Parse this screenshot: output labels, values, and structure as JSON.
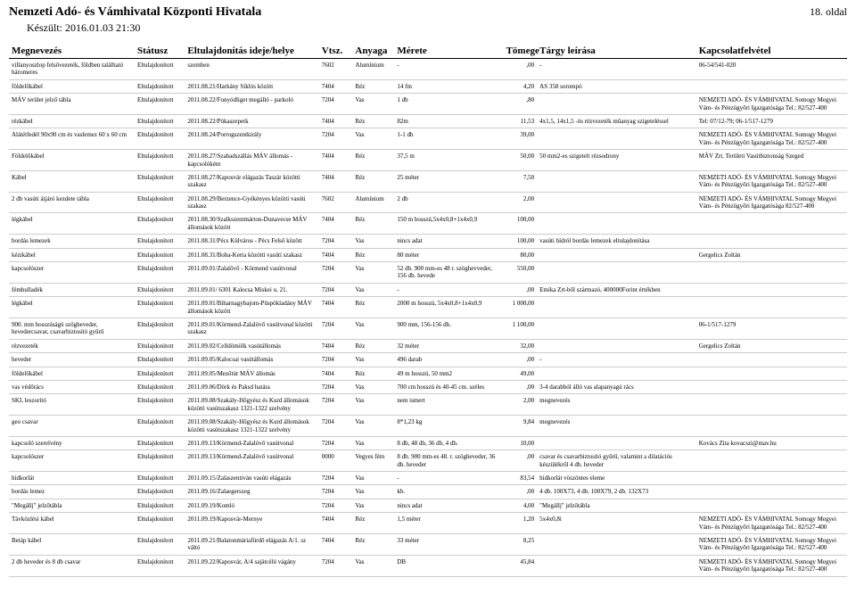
{
  "header": {
    "title": "Nemzeti Adó- és Vámhivatal Központi Hivatala",
    "page_label": "18. oldal",
    "date_line": "Készült:  2016.01.03 21:30"
  },
  "columns": {
    "name": "Megnevezés",
    "status": "Státusz",
    "time": "Eltulajdonítás ideje/helye",
    "vtsz": "Vtsz.",
    "material": "Anyaga",
    "size": "Mérete",
    "weight": "Tömege",
    "desc": "Tárgy leírása",
    "contact": "Kapcsolatfelvétel"
  },
  "rows": [
    {
      "name": "villanyoszlop felsővezeték, földben található háromeres",
      "status": "Eltulajdonított",
      "time": "szemben",
      "vtsz": "7602",
      "material": "Alumínium",
      "size": "-",
      "weight": ",00",
      "desc": "-",
      "contact": "06-54/541-020"
    },
    {
      "name": "földelőkábel",
      "status": "Eltulajdonított",
      "time": "2011.08.21/Harkány Siklós között",
      "vtsz": "7404",
      "material": "Réz",
      "size": "14 fm",
      "weight": "4,20",
      "desc": "AS 358 sorompó",
      "contact": ""
    },
    {
      "name": "MÁV terület jelző tábla",
      "status": "Eltulajdonított",
      "time": "2011.08.22/Fonyódliget megálló - parkoló",
      "vtsz": "7204",
      "material": "Vas",
      "size": "1 db",
      "weight": ",80",
      "desc": "",
      "contact": "NEMZETI ADÓ- ÉS VÁMHIVATAL Somogy Megyei Vám- és Pénzügyőri Igazgatósága Tel.: 82/527-400"
    },
    {
      "name": "rézkábel",
      "status": "Eltulajdonított",
      "time": "2011.08.22/Pókaszepetk",
      "vtsz": "7404",
      "material": "Réz",
      "size": "82m",
      "weight": "11,53",
      "desc": "4x1,5, 14x1,5 -ös rézvezeték műanyag szigeteléssel",
      "contact": "Tel: 07/12-79; 06-1/517-1279"
    },
    {
      "name": "Alátétfedél 90x90 cm és vaslemez 60 x 60 cm",
      "status": "Eltulajdonított",
      "time": "2011.08.24/Porrogszentkirály",
      "vtsz": "7204",
      "material": "Vas",
      "size": "1-1 db",
      "weight": "39,00",
      "desc": "",
      "contact": "NEMZETI ADÓ- ÉS VÁMHIVATAL Somogy Megyei Vám- és Pénzügyőri Igazgatósága Tel.: 82/527-400"
    },
    {
      "name": "Földelőkábel",
      "status": "Eltulajdonított",
      "time": "2011.08.27/Szabadszállás MÁV állomás - kapcsolóként",
      "vtsz": "7404",
      "material": "Réz",
      "size": "37,5 m",
      "weight": "50,00",
      "desc": "50 mm2-es szigetelt rézsodrony",
      "contact": "MÁV Zrt. Területi Vasútbiztonság Szeged"
    },
    {
      "name": "Kábel",
      "status": "Eltulajdonított",
      "time": "2011.08.27/Kaposvár elágazás Taszár közötti szakasz",
      "vtsz": "7404",
      "material": "Réz",
      "size": "25 méter",
      "weight": "7,50",
      "desc": "",
      "contact": "NEMZETI ADÓ- ÉS VÁMHIVATAL Somogy Megyei Vám- és Pénzügyőri Igazgatósága Tel.: 82/527-400"
    },
    {
      "name": "2 db vasúti átjáró kezdete tábla",
      "status": "Eltulajdonított",
      "time": "2011.08.29/Berzence-Gyékényes közötti vasúti szakasz",
      "vtsz": "7602",
      "material": "Alumínium",
      "size": "2 db",
      "weight": "2,00",
      "desc": "",
      "contact": "NEMZETI ADÓ- ÉS VÁMHIVATAL Somogy Megyei Vám- és Pénzügyőri Igazgatósága 82/527-400"
    },
    {
      "name": "légkábel",
      "status": "Eltulajdonított",
      "time": "2011.08.30/Szalkszentmárton-Dunavecse MÁV állomások között",
      "vtsz": "7404",
      "material": "Réz",
      "size": "150 m hosszú,5x4x0,8+1x4x0,9",
      "weight": "100,00",
      "desc": "",
      "contact": ""
    },
    {
      "name": "bordás lemezek",
      "status": "Eltulajdonított",
      "time": "2011.08.31/Pécs Külváros - Pécs Felső között",
      "vtsz": "7204",
      "material": "Vas",
      "size": "nincs adat",
      "weight": "100,00",
      "desc": "vasúti hídról bordás lemezek eltulajdonítása",
      "contact": ""
    },
    {
      "name": "kézikábel",
      "status": "Eltulajdonított",
      "time": "2011.08.31/Boba-Kerta közötti vasúti szakasz",
      "vtsz": "7404",
      "material": "Réz",
      "size": "80 méter",
      "weight": "80,00",
      "desc": "",
      "contact": "Gergelics Zoltán"
    },
    {
      "name": "kapcsolószer",
      "status": "Eltulajdonított",
      "time": "2011.09.01/Zalalövő - Körmend vasútvonal",
      "vtsz": "7204",
      "material": "Vas",
      "size": "52 db. 900 mm-es 48 r. szöghevveder, 156 db. hevede",
      "weight": "550,00",
      "desc": "",
      "contact": ""
    },
    {
      "name": "fémhulladék",
      "status": "Eltulajdonított",
      "time": "2011.09.01/ 6301 Kalocsa Miskei u. 21.",
      "vtsz": "7204",
      "material": "Vas",
      "size": "-",
      "weight": ",00",
      "desc": "Emika Zrt-ből származó, 400000Forint értékben",
      "contact": ""
    },
    {
      "name": "légkábel",
      "status": "Eltulajdonított",
      "time": "2011.09.01/Biharnagybajom-Püspökladány MÁV állomások között",
      "vtsz": "7404",
      "material": "Réz",
      "size": "2000 m hosszú, 5x4x0,8+1x4x0,9",
      "weight": "1 000,00",
      "desc": "",
      "contact": ""
    },
    {
      "name": "900. mm hosszúságú szögheveder, hevedercsavar, csavarbiztosító gyűrű",
      "status": "Eltulajdonított",
      "time": "2011.09.01/Körmend-Zalalövő vasútvonal közötti szakasz",
      "vtsz": "7204",
      "material": "Vas",
      "size": "900 mm, 156-156 db.",
      "weight": "1 100,00",
      "desc": "",
      "contact": "06-1/517-1279"
    },
    {
      "name": "rézvezeték",
      "status": "Eltulajdonított",
      "time": "2011.09.02/Celldömölk vasútállomás",
      "vtsz": "7404",
      "material": "Réz",
      "size": "32 méter",
      "weight": "32,00",
      "desc": "",
      "contact": "Gergelics Zoltán"
    },
    {
      "name": "heveder",
      "status": "Eltulajdonított",
      "time": "2011.09.05/Kalocsai vasútállomás",
      "vtsz": "7204",
      "material": "Vas",
      "size": "496 darab",
      "weight": ",00",
      "desc": "-",
      "contact": ""
    },
    {
      "name": "földelőkábel",
      "status": "Eltulajdonított",
      "time": "2011.09.05/Mezőtúr MÁV állomás",
      "vtsz": "7404",
      "material": "Réz",
      "size": "49 m hosszú, 50 mm2",
      "weight": "49,00",
      "desc": "",
      "contact": ""
    },
    {
      "name": "vas védőrács",
      "status": "Eltulajdonított",
      "time": "2011.09.06/Dörk és Paksd határa",
      "vtsz": "7204",
      "material": "Vas",
      "size": "700 cm hosszú és 40-45 cm. széles",
      "weight": ",00",
      "desc": "3-4 darabból álló vas alapanyagú rács",
      "contact": ""
    },
    {
      "name": "SKL leszorító",
      "status": "Eltulajdonított",
      "time": "2011.09.08/Szakály-Hőgyész és Kurd állomások közötti vasútszakasz 1321-1322 szelvény",
      "vtsz": "7204",
      "material": "Vas",
      "size": "nem ismert",
      "weight": "2,00",
      "desc": "megnevezés",
      "contact": ""
    },
    {
      "name": "geo csavar",
      "status": "Eltulajdonított",
      "time": "2011.09.08/Szakály-Hőgyész és Kurd állomások közötti vasútszakasz 1321-1322 szelvény",
      "vtsz": "7204",
      "material": "Vas",
      "size": "8*1,23 kg",
      "weight": "9,84",
      "desc": "megnevezés",
      "contact": ""
    },
    {
      "name": "kapcsoló szerelvény",
      "status": "Eltulajdonított",
      "time": "2011.09.13/Körmend-Zalalövő vasútvonal",
      "vtsz": "7204",
      "material": "Vas",
      "size": "8 db, 48 db, 36 db, 4 db.",
      "weight": "10,00",
      "desc": "",
      "contact": "Kovács Zita kovacszi@mav.hu"
    },
    {
      "name": "kapcsolószer",
      "status": "Eltulajdonított",
      "time": "2011.09.13/Körmend-Zalalövő vasútvonal",
      "vtsz": "0000",
      "material": "Vegyes fém",
      "size": "8 db. 900 mm-es 48. r. szögheveder, 36 db. heveder",
      "weight": ",00",
      "desc": "csavar és csavarbiztosító gyűrű, valamint a dilatációs készülékről 4 db. heveder",
      "contact": ""
    },
    {
      "name": "hídkorlát",
      "status": "Eltulajdonított",
      "time": "2011.09.15/Zalaszentiván vasúti elágazás",
      "vtsz": "7204",
      "material": "Vas",
      "size": "-",
      "weight": "83,54",
      "desc": "hídkorlát vöszöntes eleme",
      "contact": ""
    },
    {
      "name": "bordás lemez",
      "status": "Eltulajdonított",
      "time": "2011.09.16/Zalaegerszeg",
      "vtsz": "7204",
      "material": "Vas",
      "size": "kb.",
      "weight": ",00",
      "desc": "4 db. 100X73, 4 db. 100X79, 2 db. 132X73",
      "contact": ""
    },
    {
      "name": "\"Megállj\" jelzőtábla",
      "status": "Eltulajdonított",
      "time": "2011.09.19/Komló",
      "vtsz": "7204",
      "material": "Vas",
      "size": "nincs adat",
      "weight": "4,00",
      "desc": "\"Megállj\" jelzőtábla",
      "contact": ""
    },
    {
      "name": "Távközlési kábel",
      "status": "Eltulajdonított",
      "time": "2011.09.19/Kaposvár-Mernye",
      "vtsz": "7404",
      "material": "Réz",
      "size": "1,5 méter",
      "weight": "1,20",
      "desc": "5x4x0,8i",
      "contact": "NEMZETI ADÓ- ÉS VÁMHIVATAL  Somogy Megyei Vám- és Pénzügyőri Igazgatósága Tel.: 82/527-400"
    },
    {
      "name": "Betáp kábel",
      "status": "Eltulajdonított",
      "time": "2011.09.21/Balatonmáriafürdő elágazás A/1. sz váltó",
      "vtsz": "7404",
      "material": "Réz",
      "size": "33 méter",
      "weight": "8,25",
      "desc": "",
      "contact": "NEMZETI ADÓ- ÉS VÁMHIVATAL  Somogy Megyei Vám- és Pénzügyőri Igazgatósága Tel.: 82/527-400"
    },
    {
      "name": "2 db heveder és 8 db csavar",
      "status": "Eltulajdonított",
      "time": "2011.09.22/Kaposvár, A/4 sajátcélú vágány",
      "vtsz": "7204",
      "material": "Vas",
      "size": "DB",
      "weight": "45,84",
      "desc": "",
      "contact": "NEMZETI ADÓ- ÉS VÁMHIVATAL  Somogy Megyei Vám- és Pénzügyőri Igazgatósága Tel.: 82/527-400"
    }
  ]
}
